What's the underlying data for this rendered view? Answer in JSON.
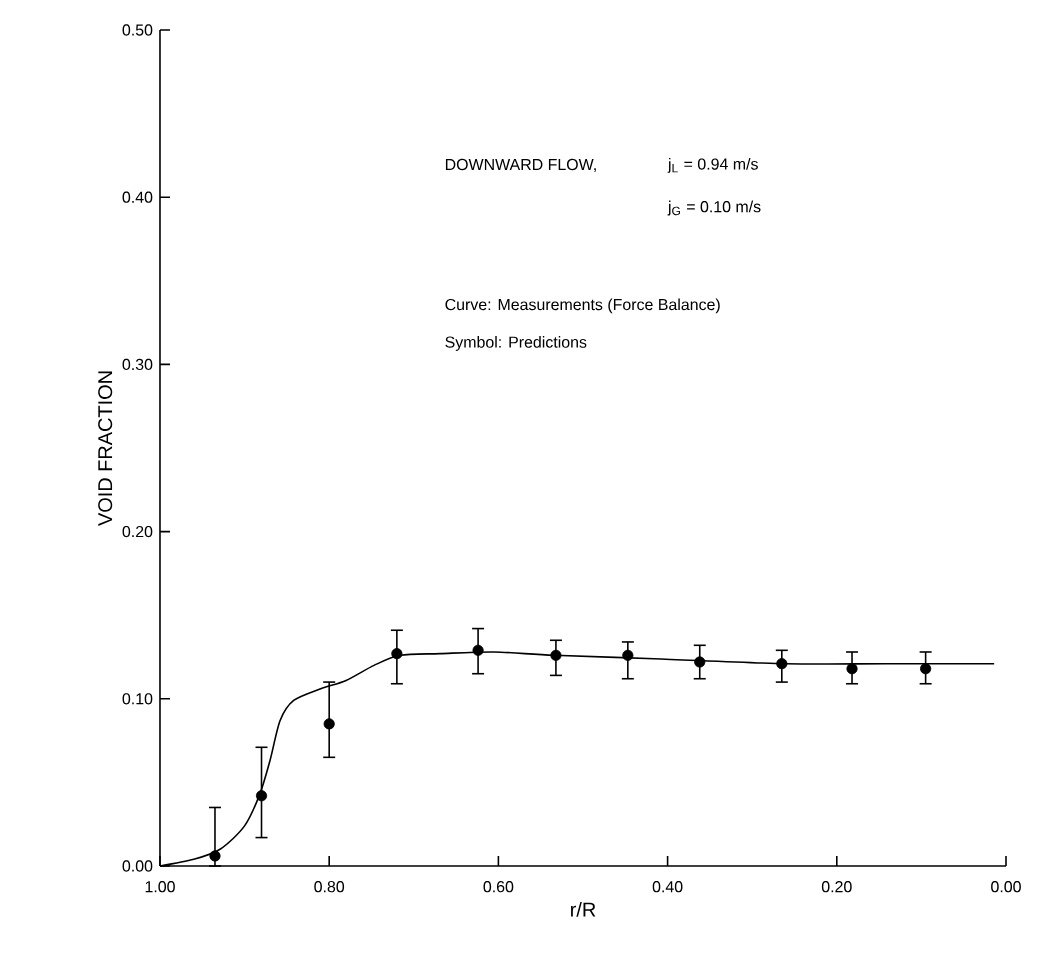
{
  "chart_data": {
    "type": "line",
    "xlabel": "r/R",
    "ylabel": "VOID FRACTION",
    "xlim": [
      1.0,
      0.0
    ],
    "ylim": [
      0.0,
      0.5
    ],
    "xticks": [
      {
        "value": 1.0,
        "label": "1.00"
      },
      {
        "value": 0.8,
        "label": "0.80"
      },
      {
        "value": 0.6,
        "label": "0.60"
      },
      {
        "value": 0.4,
        "label": "0.40"
      },
      {
        "value": 0.2,
        "label": "0.20"
      },
      {
        "value": 0.0,
        "label": "0.00"
      }
    ],
    "yticks": [
      {
        "value": 0.0,
        "label": "0.00"
      },
      {
        "value": 0.1,
        "label": "0.10"
      },
      {
        "value": 0.2,
        "label": "0.20"
      },
      {
        "value": 0.3,
        "label": "0.30"
      },
      {
        "value": 0.4,
        "label": "0.40"
      },
      {
        "value": 0.5,
        "label": "0.50"
      }
    ],
    "annotations": [
      "DOWNWARD FLOW,",
      "j$_{L}$ = 0.94 m/s",
      "j$_{G}$ = 0.10 m/s",
      "Curve: Measurements (Force Balance)",
      "Symbol: Predictions"
    ],
    "series": [
      {
        "type": "line",
        "color": "#000000",
        "marker": "none",
        "line_style": "solid",
        "x": [
          1.0,
          0.96,
          0.929,
          0.9,
          0.882,
          0.87,
          0.858,
          0.842,
          0.81,
          0.78,
          0.747,
          0.716,
          0.669,
          0.605,
          0.534,
          0.416,
          0.26,
          0.142,
          0.014
        ],
        "values": [
          0.0,
          0.004,
          0.01,
          0.024,
          0.043,
          0.063,
          0.087,
          0.099,
          0.106,
          0.111,
          0.12,
          0.126,
          0.127,
          0.128,
          0.126,
          0.124,
          0.121,
          0.121,
          0.121
        ]
      },
      {
        "type": "scatter",
        "color": "#000000",
        "marker": "circle",
        "x": [
          0.935,
          0.88,
          0.8,
          0.72,
          0.624,
          0.532,
          0.447,
          0.362,
          0.265,
          0.182,
          0.095
        ],
        "values": [
          0.006,
          0.042,
          0.085,
          0.127,
          0.129,
          0.126,
          0.126,
          0.122,
          0.121,
          0.118,
          0.118
        ],
        "errors": [
          [
            0.0,
            0.035
          ],
          [
            0.017,
            0.071
          ],
          [
            0.065,
            0.11
          ],
          [
            0.109,
            0.141
          ],
          [
            0.115,
            0.142
          ],
          [
            0.114,
            0.135
          ],
          [
            0.112,
            0.134
          ],
          [
            0.112,
            0.132
          ],
          [
            0.11,
            0.129
          ],
          [
            0.109,
            0.128
          ],
          [
            0.109,
            0.128
          ]
        ]
      }
    ]
  }
}
